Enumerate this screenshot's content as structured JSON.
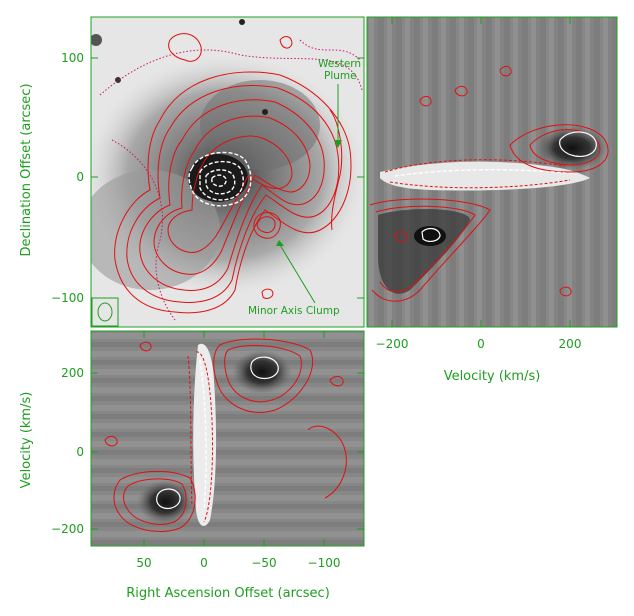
{
  "chart_data": [
    {
      "type": "heatmap",
      "panel": "sky-map",
      "xlabel": "",
      "ylabel": "Declination Offset (arcsec)",
      "y_ticks": [
        100,
        0,
        -100
      ],
      "ylim": [
        -125,
        130
      ],
      "xlim": [
        90,
        -130
      ],
      "annotations": [
        {
          "text": "Western",
          "x": -125,
          "y": 90
        },
        {
          "text": "Plume",
          "x": -125,
          "y": 78
        },
        {
          "text": "Minor Axis Clump",
          "x": -125,
          "y": -112
        }
      ],
      "contours": "red (CO emission), white dashed (absorption) over grayscale optical image"
    },
    {
      "type": "heatmap",
      "panel": "declination-velocity",
      "xlabel": "Velocity (km/s)",
      "ylabel": "",
      "x_ticks": [
        -200,
        0,
        200
      ],
      "xlim": [
        -250,
        300
      ],
      "ylim": [
        -125,
        130
      ],
      "features": [
        {
          "name": "receding lobe",
          "x": 200,
          "y": 28
        },
        {
          "name": "approaching lobe",
          "x": -110,
          "y": -55
        },
        {
          "name": "absorption band",
          "x": 50,
          "y": 0
        }
      ]
    },
    {
      "type": "heatmap",
      "panel": "rightascension-velocity",
      "xlabel": "Right Ascension Offset (arcsec)",
      "ylabel": "Velocity (km/s)",
      "x_ticks": [
        50,
        0,
        -50,
        -100
      ],
      "y_ticks": [
        200,
        0,
        -200
      ],
      "xlim": [
        90,
        -130
      ],
      "ylim": [
        -240,
        300
      ],
      "features": [
        {
          "name": "receding lobe",
          "x": -45,
          "y": 200
        },
        {
          "name": "approaching lobe",
          "x": 35,
          "y": -140
        },
        {
          "name": "absorption band",
          "x": 2,
          "y": 50
        }
      ]
    }
  ],
  "colors": {
    "axis": "#1e9e1e",
    "contour": "#e01010",
    "absorption": "#ffffff",
    "mask": "#cc1166"
  }
}
